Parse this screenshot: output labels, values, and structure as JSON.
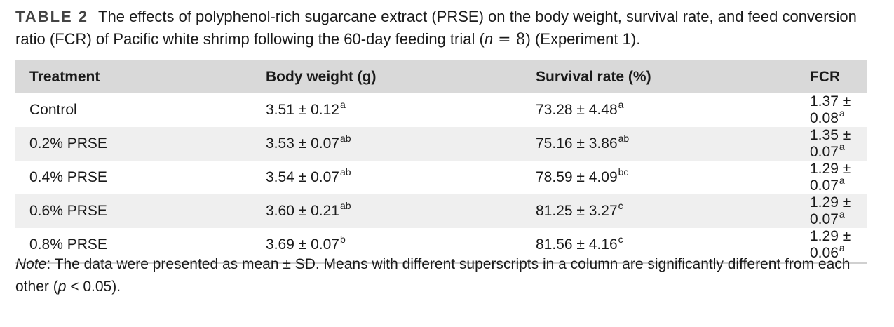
{
  "caption": {
    "label": "TABLE 2",
    "text_before": "The effects of polyphenol-rich sugarcane extract (PRSE) on the body weight, survival rate, and feed conversion ratio (FCR) of Pacific white shrimp following the 60-day feeding trial (",
    "n_var": "n",
    "n_eq": " = 8",
    "text_after": ") (Experiment 1)."
  },
  "table": {
    "headers": [
      "Treatment",
      "Body weight (g)",
      "Survival rate (%)",
      "FCR"
    ],
    "rows": [
      {
        "treatment": "Control",
        "body_weight": {
          "value": "3.51 ± 0.12",
          "sup": "a"
        },
        "survival": {
          "value": "73.28 ± 4.48",
          "sup": "a"
        },
        "fcr": {
          "value": "1.37 ± 0.08",
          "sup": "a"
        }
      },
      {
        "treatment": "0.2% PRSE",
        "body_weight": {
          "value": "3.53 ± 0.07",
          "sup": "ab"
        },
        "survival": {
          "value": "75.16 ± 3.86",
          "sup": "ab"
        },
        "fcr": {
          "value": "1.35 ± 0.07",
          "sup": "a"
        }
      },
      {
        "treatment": "0.4% PRSE",
        "body_weight": {
          "value": "3.54 ± 0.07",
          "sup": "ab"
        },
        "survival": {
          "value": "78.59 ± 4.09",
          "sup": "bc"
        },
        "fcr": {
          "value": "1.29 ± 0.07",
          "sup": "a"
        }
      },
      {
        "treatment": "0.6% PRSE",
        "body_weight": {
          "value": "3.60 ± 0.21",
          "sup": "ab"
        },
        "survival": {
          "value": "81.25 ± 3.27",
          "sup": "c"
        },
        "fcr": {
          "value": "1.29 ± 0.07",
          "sup": "a"
        }
      },
      {
        "treatment": "0.8% PRSE",
        "body_weight": {
          "value": "3.69 ± 0.07",
          "sup": "b"
        },
        "survival": {
          "value": "81.56 ± 4.16",
          "sup": "c"
        },
        "fcr": {
          "value": "1.29 ± 0.06",
          "sup": "a"
        }
      }
    ]
  },
  "note": {
    "label": "Note",
    "text_before": ": The data were presented as mean ± SD. Means with different superscripts in a column are significantly different from each other (",
    "p_var": "p",
    "text_after": " < 0.05)."
  }
}
